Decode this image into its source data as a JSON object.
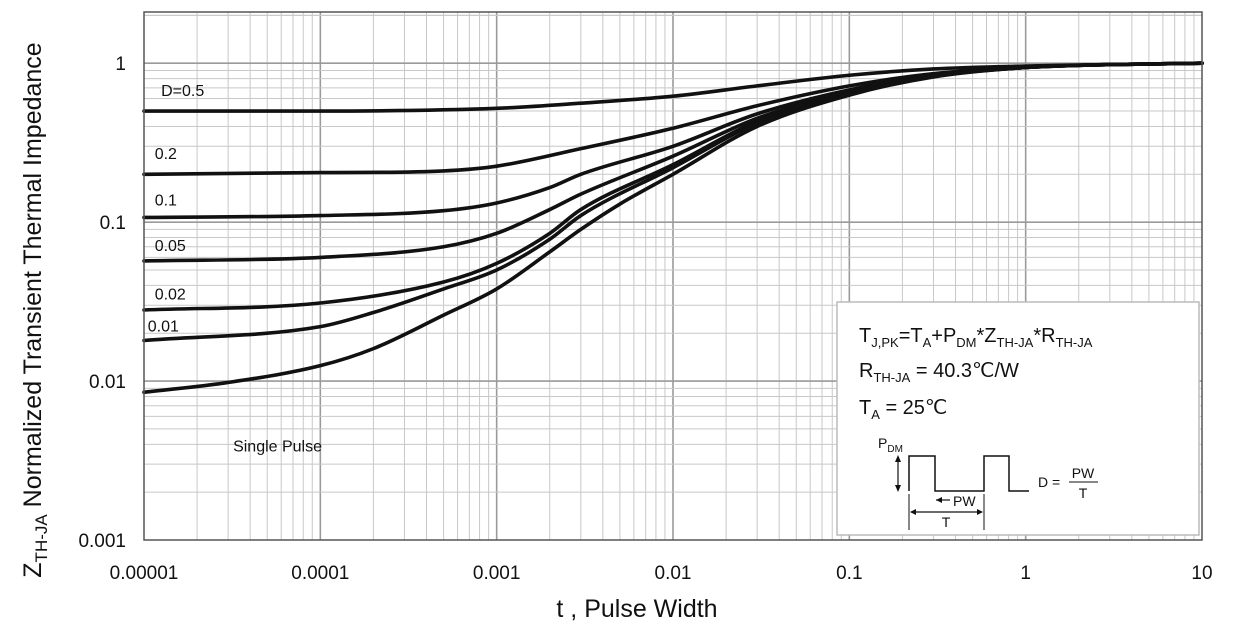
{
  "chart_data": {
    "type": "line",
    "scale": "log-log",
    "title": "",
    "xlabel": "t , Pulse Width",
    "ylabel": "Z",
    "ylabel_sub": "TH-JA",
    "ylabel_rest": " Normalized Transient Thermal Impedance",
    "xlim": [
      1e-05,
      10
    ],
    "ylim": [
      0.001,
      2.1
    ],
    "grid": true,
    "x_ticks": [
      {
        "v": 1e-05,
        "label": "0.00001"
      },
      {
        "v": 0.0001,
        "label": "0.0001"
      },
      {
        "v": 0.001,
        "label": "0.001"
      },
      {
        "v": 0.01,
        "label": "0.01"
      },
      {
        "v": 0.1,
        "label": "0.1"
      },
      {
        "v": 1,
        "label": "1"
      },
      {
        "v": 10,
        "label": "10"
      }
    ],
    "y_ticks": [
      {
        "v": 0.001,
        "label": "0.001"
      },
      {
        "v": 0.01,
        "label": "0.01"
      },
      {
        "v": 0.1,
        "label": "0.1"
      },
      {
        "v": 1,
        "label": "1"
      }
    ],
    "series": [
      {
        "name": "D=0.5",
        "label": "D=0.5",
        "label_at": [
          1.25e-05,
          0.62
        ],
        "x": [
          1e-05,
          0.0001,
          0.001,
          0.003,
          0.01,
          0.03,
          0.1,
          0.3,
          1,
          3,
          10
        ],
        "y": [
          0.5,
          0.5,
          0.52,
          0.56,
          0.62,
          0.72,
          0.84,
          0.92,
          0.96,
          0.98,
          1.0
        ]
      },
      {
        "name": "0.2",
        "label": "0.2",
        "label_at": [
          1.15e-05,
          0.25
        ],
        "x": [
          1e-05,
          0.0001,
          0.0005,
          0.001,
          0.003,
          0.01,
          0.03,
          0.1,
          0.3,
          1,
          3,
          10
        ],
        "y": [
          0.2,
          0.205,
          0.21,
          0.225,
          0.29,
          0.39,
          0.54,
          0.72,
          0.86,
          0.94,
          0.98,
          1.0
        ]
      },
      {
        "name": "0.1",
        "label": "0.1",
        "label_at": [
          1.15e-05,
          0.127
        ],
        "x": [
          1e-05,
          0.0001,
          0.0005,
          0.001,
          0.002,
          0.003,
          0.01,
          0.03,
          0.1,
          0.3,
          1,
          3,
          10
        ],
        "y": [
          0.107,
          0.11,
          0.118,
          0.132,
          0.165,
          0.2,
          0.3,
          0.48,
          0.68,
          0.84,
          0.94,
          0.98,
          1.0
        ]
      },
      {
        "name": "0.05",
        "label": "0.05",
        "label_at": [
          1.15e-05,
          0.066
        ],
        "x": [
          1e-05,
          0.0001,
          0.0005,
          0.001,
          0.002,
          0.003,
          0.01,
          0.03,
          0.1,
          0.3,
          1,
          3,
          10
        ],
        "y": [
          0.057,
          0.06,
          0.07,
          0.085,
          0.12,
          0.15,
          0.26,
          0.45,
          0.66,
          0.83,
          0.94,
          0.98,
          1.0
        ]
      },
      {
        "name": "0.02",
        "label": "0.02",
        "label_at": [
          1.15e-05,
          0.0325
        ],
        "x": [
          1e-05,
          0.0001,
          0.0005,
          0.001,
          0.002,
          0.003,
          0.01,
          0.03,
          0.1,
          0.3,
          1,
          3,
          10
        ],
        "y": [
          0.028,
          0.031,
          0.042,
          0.055,
          0.085,
          0.12,
          0.23,
          0.43,
          0.65,
          0.83,
          0.94,
          0.98,
          1.0
        ]
      },
      {
        "name": "0.01",
        "label": "0.01",
        "label_at": [
          1.05e-05,
          0.0205
        ],
        "x": [
          1e-05,
          0.0001,
          0.0002,
          0.0005,
          0.001,
          0.002,
          0.003,
          0.01,
          0.03,
          0.1,
          0.3,
          1,
          3,
          10
        ],
        "y": [
          0.018,
          0.022,
          0.027,
          0.038,
          0.05,
          0.078,
          0.11,
          0.22,
          0.42,
          0.64,
          0.83,
          0.94,
          0.98,
          1.0
        ]
      },
      {
        "name": "Single Pulse",
        "label": "Single Pulse",
        "label_at": [
          3.2e-05,
          0.0036
        ],
        "x": [
          1e-05,
          3e-05,
          0.0001,
          0.0002,
          0.0005,
          0.001,
          0.002,
          0.003,
          0.005,
          0.01,
          0.03,
          0.1,
          0.3,
          1,
          3,
          10
        ],
        "y": [
          0.0085,
          0.0098,
          0.0125,
          0.016,
          0.026,
          0.038,
          0.065,
          0.09,
          0.13,
          0.2,
          0.4,
          0.63,
          0.82,
          0.94,
          0.98,
          1.0
        ]
      }
    ],
    "annotation": {
      "formula": {
        "p1": "T",
        "p1s": "J,PK",
        "p2": "=T",
        "p2s": "A",
        "p3": "+P",
        "p3s": "DM",
        "p4": "*Z",
        "p4s": "TH-JA",
        "p5": "*R",
        "p5s": "TH-JA"
      },
      "rth": {
        "main": "R",
        "sub": "TH-JA",
        "rest": " = 40.3℃/W"
      },
      "ta": {
        "main": "T",
        "sub": "A",
        "rest": " = 25℃"
      },
      "diagram": {
        "pdm_main": "P",
        "pdm_sub": "DM",
        "pw": "PW",
        "t": "T",
        "duty_lhs": "D =",
        "duty_num": "PW",
        "duty_den": "T"
      }
    }
  }
}
